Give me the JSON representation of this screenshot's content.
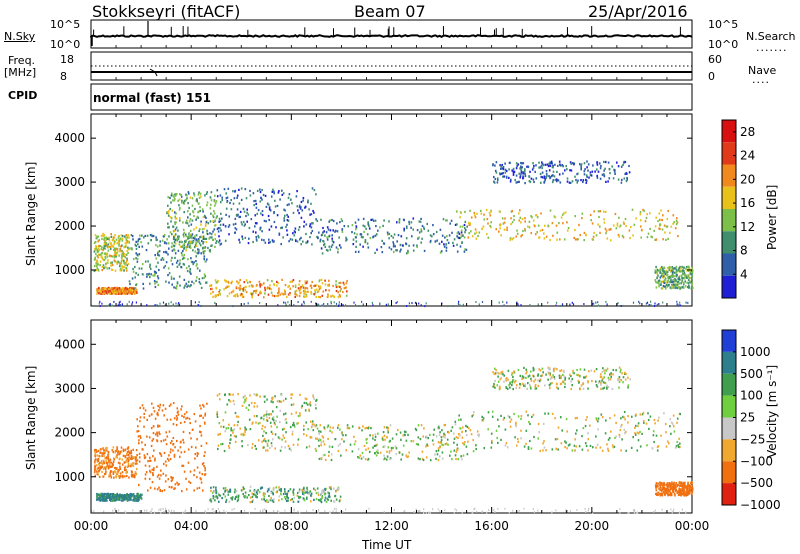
{
  "header": {
    "station": "Stokkseyri (fitACF)",
    "beam": "Beam 07",
    "date": "25/Apr/2016"
  },
  "strip_nsky": {
    "left_label": "N.Sky",
    "right_label": "N.Search",
    "ticks_left": [
      "10^5",
      "10^0"
    ],
    "ticks_right": [
      "10^5",
      "10^0"
    ]
  },
  "strip_freq": {
    "left_label_1": "Freq.",
    "left_label_2": "[MHz]",
    "right_label": "Nave",
    "ticks_left": [
      "18",
      "8"
    ],
    "ticks_right": [
      "60",
      "0"
    ]
  },
  "cpid": {
    "label": "CPID",
    "value": "normal (fast) 151"
  },
  "chart_data": [
    {
      "type": "heatmap",
      "title": "",
      "xlabel": "Time UT",
      "ylabel": "Slant Range [km]",
      "x_ticks": [
        "00:00",
        "04:00",
        "08:00",
        "12:00",
        "16:00",
        "20:00",
        "00:00"
      ],
      "y_ticks": [
        1000,
        2000,
        3000,
        4000
      ],
      "xlim_hours": [
        0,
        24
      ],
      "ylim_km": [
        180,
        4550
      ],
      "colorbar": {
        "label": "Power [dB]",
        "ticks": [
          4,
          8,
          12,
          16,
          20,
          24,
          28
        ],
        "range": [
          0,
          30
        ],
        "colors": [
          "#1f1fd6",
          "#2e5fa8",
          "#3f8f6e",
          "#7cc04a",
          "#e8c21a",
          "#f08a1e",
          "#e03a1a",
          "#d81010"
        ]
      },
      "echo_regions": [
        {
          "t": [
            0.1,
            1.5
          ],
          "r": [
            1000,
            1850
          ],
          "level": 16
        },
        {
          "t": [
            0.2,
            1.8
          ],
          "r": [
            480,
            620
          ],
          "level": 22
        },
        {
          "t": [
            1.5,
            4.6
          ],
          "r": [
            600,
            1850
          ],
          "level": 9
        },
        {
          "t": [
            3.0,
            5.0
          ],
          "r": [
            1400,
            2800
          ],
          "level": 12
        },
        {
          "t": [
            4.7,
            10.2
          ],
          "r": [
            400,
            800
          ],
          "level": 20
        },
        {
          "t": [
            5.0,
            9.0
          ],
          "r": [
            1600,
            2900
          ],
          "level": 6
        },
        {
          "t": [
            9.0,
            15.0
          ],
          "r": [
            1400,
            2200
          ],
          "level": 8
        },
        {
          "t": [
            14.5,
            23.5
          ],
          "r": [
            1700,
            2400
          ],
          "level": 18
        },
        {
          "t": [
            16.0,
            21.5
          ],
          "r": [
            3000,
            3500
          ],
          "level": 6
        },
        {
          "t": [
            22.5,
            24.0
          ],
          "r": [
            600,
            1100
          ],
          "level": 12
        }
      ]
    },
    {
      "type": "heatmap",
      "title": "",
      "xlabel": "Time UT",
      "ylabel": "Slant Range [km]",
      "x_ticks": [
        "00:00",
        "04:00",
        "08:00",
        "12:00",
        "16:00",
        "20:00",
        "00:00"
      ],
      "y_ticks": [
        1000,
        2000,
        3000,
        4000
      ],
      "xlim_hours": [
        0,
        24
      ],
      "ylim_km": [
        180,
        4550
      ],
      "colorbar": {
        "label": "Velocity [m s⁻¹]",
        "ticks": [
          1000,
          500,
          100,
          25,
          -25,
          -100,
          -500,
          -1000
        ],
        "colors": [
          "#1f3fd6",
          "#2e7f8e",
          "#3f9f4e",
          "#6fcf3e",
          "#c8c8c8",
          "#f0a830",
          "#f07010",
          "#e02010"
        ]
      },
      "echo_regions": [
        {
          "t": [
            0.1,
            1.8
          ],
          "r": [
            1000,
            1700
          ],
          "value": -150
        },
        {
          "t": [
            0.2,
            2.0
          ],
          "r": [
            480,
            640
          ],
          "value": 150
        },
        {
          "t": [
            1.8,
            4.6
          ],
          "r": [
            700,
            2700
          ],
          "value": -250
        },
        {
          "t": [
            4.7,
            10.0
          ],
          "r": [
            450,
            800
          ],
          "value": 60
        },
        {
          "t": [
            5.0,
            9.0
          ],
          "r": [
            1600,
            2900
          ],
          "value": 0
        },
        {
          "t": [
            9.0,
            15.0
          ],
          "r": [
            1400,
            2200
          ],
          "value": 0
        },
        {
          "t": [
            14.5,
            23.5
          ],
          "r": [
            1600,
            2500
          ],
          "value": 0
        },
        {
          "t": [
            16.0,
            21.5
          ],
          "r": [
            3000,
            3500
          ],
          "value": 0
        },
        {
          "t": [
            22.5,
            24.0
          ],
          "r": [
            600,
            900
          ],
          "value": -200
        }
      ]
    }
  ]
}
